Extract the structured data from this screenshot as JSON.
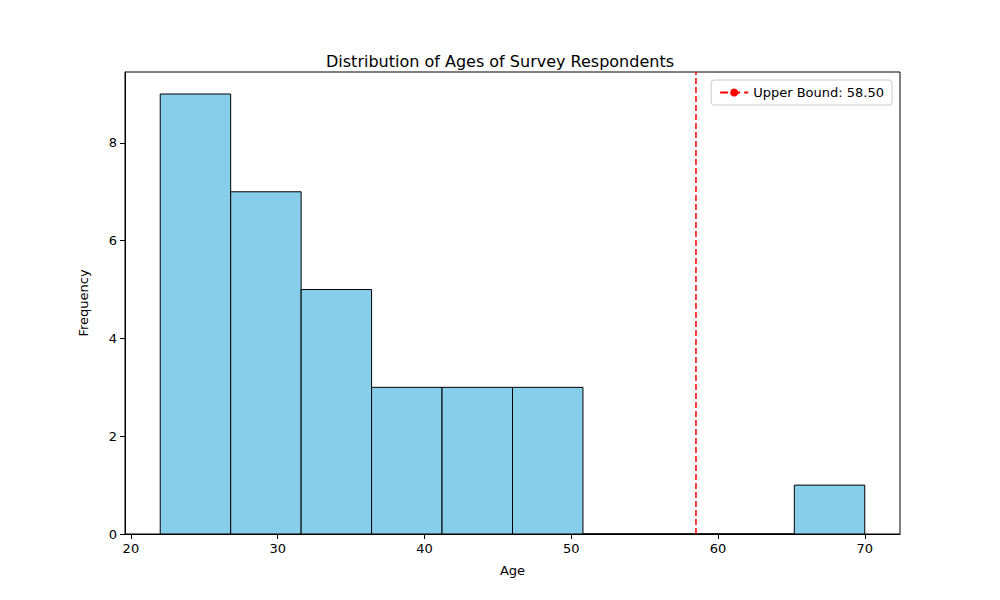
{
  "chart_data": {
    "type": "histogram",
    "title": "Distribution of Ages of Survey Respondents",
    "x_label": "Age",
    "y_label": "Frequency",
    "bins": [
      22,
      26.8,
      31.6,
      36.4,
      41.2,
      46.0,
      50.8,
      55.6,
      60.4,
      65.2,
      70
    ],
    "counts": [
      9,
      7,
      5,
      3,
      3,
      3,
      0,
      0,
      0,
      1
    ],
    "color": "#87ceeb",
    "xlim": [
      19.6,
      72.4
    ],
    "xticks": [
      20,
      30,
      40,
      50,
      60,
      70
    ],
    "ylim": [
      0,
      9.45
    ],
    "yticks": [
      0,
      2,
      4,
      6,
      8
    ],
    "grid": false,
    "legend": "upper right",
    "reference_lines": [
      {
        "name": "Upper Bound: 58.50",
        "x": 58.5,
        "color": "#ff0000",
        "line_style": "dashed"
      }
    ]
  }
}
